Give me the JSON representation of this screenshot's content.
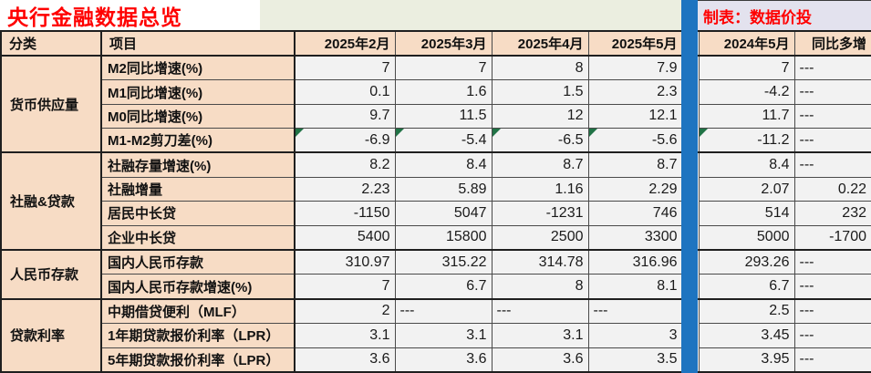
{
  "title": "央行金融数据总览",
  "credit": "制表：数据价投",
  "columns": {
    "category": "分类",
    "item": "项目",
    "months": [
      "2025年2月",
      "2025年3月",
      "2025年4月",
      "2025年5月"
    ],
    "prev": "2024年5月",
    "yoy": "同比多增"
  },
  "groups": [
    {
      "category": "货币供应量",
      "rows": [
        {
          "item": "M2同比增速(%)",
          "values": [
            "7",
            "7",
            "8",
            "7.9"
          ],
          "prev": "7",
          "yoy": "---"
        },
        {
          "item": "M1同比增速(%)",
          "values": [
            "0.1",
            "1.6",
            "1.5",
            "2.3"
          ],
          "prev": "-4.2",
          "yoy": "---"
        },
        {
          "item": "M0同比增速(%)",
          "values": [
            "9.7",
            "11.5",
            "12",
            "12.1"
          ],
          "prev": "11.7",
          "yoy": "---"
        },
        {
          "item": "M1-M2剪刀差(%)",
          "values": [
            "-6.9",
            "-5.4",
            "-6.5",
            "-5.6"
          ],
          "prev": "-11.2",
          "yoy": "---",
          "triangles": [
            0,
            1,
            2,
            3,
            4
          ]
        }
      ]
    },
    {
      "category": "社融&贷款",
      "rows": [
        {
          "item": "社融存量增速(%)",
          "values": [
            "8.2",
            "8.4",
            "8.7",
            "8.7"
          ],
          "prev": "8.4",
          "yoy": "---"
        },
        {
          "item": "社融增量",
          "values": [
            "2.23",
            "5.89",
            "1.16",
            "2.29"
          ],
          "prev": "2.07",
          "yoy": "0.22"
        },
        {
          "item": "居民中长贷",
          "values": [
            "-1150",
            "5047",
            "-1231",
            "746"
          ],
          "prev": "514",
          "yoy": "232"
        },
        {
          "item": "企业中长贷",
          "values": [
            "5400",
            "15800",
            "2500",
            "3300"
          ],
          "prev": "5000",
          "yoy": "-1700"
        }
      ]
    },
    {
      "category": "人民币存款",
      "rows": [
        {
          "item": "国内人民币存款",
          "values": [
            "310.97",
            "315.22",
            "314.78",
            "316.96"
          ],
          "prev": "293.26",
          "yoy": "---"
        },
        {
          "item": "国内人民币存款增速(%)",
          "values": [
            "7",
            "6.7",
            "8",
            "8.1"
          ],
          "prev": "6.7",
          "yoy": "---"
        }
      ]
    },
    {
      "category": "贷款利率",
      "rows": [
        {
          "item": "中期借贷便利（MLF）",
          "values": [
            "2",
            "---",
            "---",
            "---"
          ],
          "prev": "2.5",
          "yoy": "---"
        },
        {
          "item": "1年期贷款报价利率（LPR）",
          "values": [
            "3.1",
            "3.1",
            "3.1",
            "3"
          ],
          "prev": "3.45",
          "yoy": "---"
        },
        {
          "item": "5年期贷款报价利率（LPR）",
          "values": [
            "3.6",
            "3.6",
            "3.6",
            "3.5"
          ],
          "prev": "3.95",
          "yoy": "---"
        }
      ]
    }
  ],
  "colors": {
    "title_red": "#ff0000",
    "header_peach": "#f7dcc5",
    "data_gray": "#f2f2f2",
    "strip_green": "#ebeee0",
    "credit_lavender": "#e3e2ee",
    "separator_blue": "#1e74c0",
    "comment_marker_green": "#217346"
  }
}
